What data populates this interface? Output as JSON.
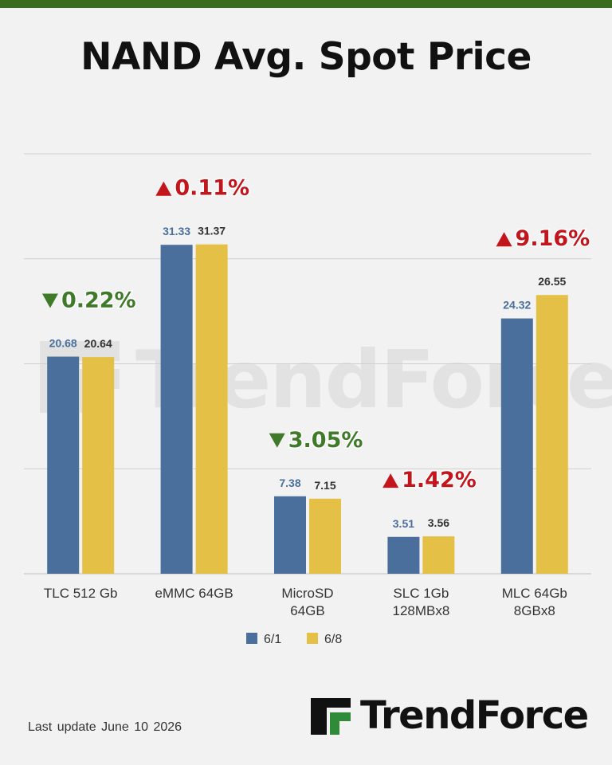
{
  "title": "NAND Avg. Spot Price",
  "footer": {
    "last_update": "Last update  June 10  2026"
  },
  "logo": {
    "text": "TrendForce",
    "icon": "trendforce-logo-icon"
  },
  "watermark": {
    "text": "TrendForce"
  },
  "colors": {
    "top_bar": "#3a6b1f",
    "series_a": "#4a6f9c",
    "series_b": "#e4c146",
    "label_a": "#4a6f9c",
    "label_b": "#333333",
    "up": "#c3161c",
    "down": "#3f7a28",
    "grid": "#d0d0d0",
    "logo_green": "#2f8a3a"
  },
  "chart_data": {
    "type": "bar",
    "categories": [
      "TLC 512 Gb",
      "eMMC 64GB",
      "MicroSD 64GB",
      "SLC 1Gb 128MBx8",
      "MLC 64Gb 8GBx8"
    ],
    "category_lines": [
      [
        "TLC 512 Gb"
      ],
      [
        "eMMC 64GB"
      ],
      [
        "MicroSD",
        "64GB"
      ],
      [
        "SLC 1Gb",
        "128MBx8"
      ],
      [
        "MLC 64Gb",
        "8GBx8"
      ]
    ],
    "series": [
      {
        "name": "6/1",
        "values": [
          20.68,
          31.33,
          7.38,
          3.51,
          24.32
        ],
        "labels": [
          "20.68",
          "31.33",
          "7.38",
          "3.51",
          "24.32"
        ]
      },
      {
        "name": "6/8",
        "values": [
          20.64,
          31.37,
          7.15,
          3.56,
          26.55
        ],
        "labels": [
          "20.64",
          "31.37",
          "7.15",
          "3.56",
          "26.55"
        ]
      }
    ],
    "changes": [
      {
        "direction": "down",
        "text": "0.22%"
      },
      {
        "direction": "up",
        "text": "0.11%"
      },
      {
        "direction": "down",
        "text": "3.05%"
      },
      {
        "direction": "up",
        "text": "1.42%"
      },
      {
        "direction": "up",
        "text": "9.16%"
      }
    ],
    "ylim": [
      0,
      40
    ],
    "gridlines": [
      0,
      10,
      20,
      30,
      40
    ],
    "legend_position": "bottom-center"
  }
}
